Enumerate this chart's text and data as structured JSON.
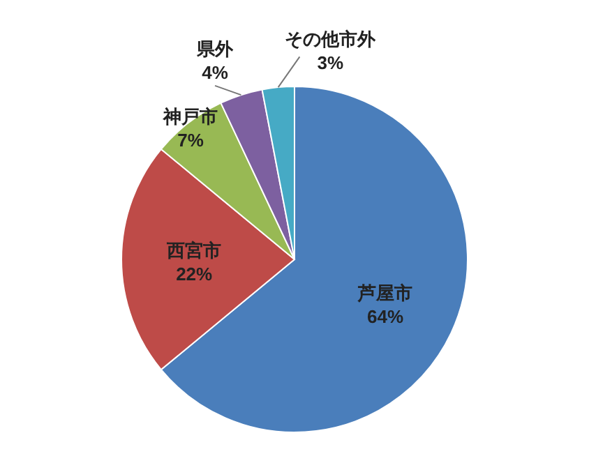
{
  "chart_data": {
    "type": "pie",
    "categories": [
      "芦屋市",
      "西宮市",
      "神戸市",
      "県外",
      "その他市外"
    ],
    "values": [
      64,
      22,
      7,
      4,
      3
    ],
    "colors": [
      "#4a7ebb",
      "#be4b48",
      "#98b954",
      "#7d60a0",
      "#46aac5"
    ],
    "value_labels": [
      "64%",
      "22%",
      "7%",
      "4%",
      "3%"
    ]
  }
}
